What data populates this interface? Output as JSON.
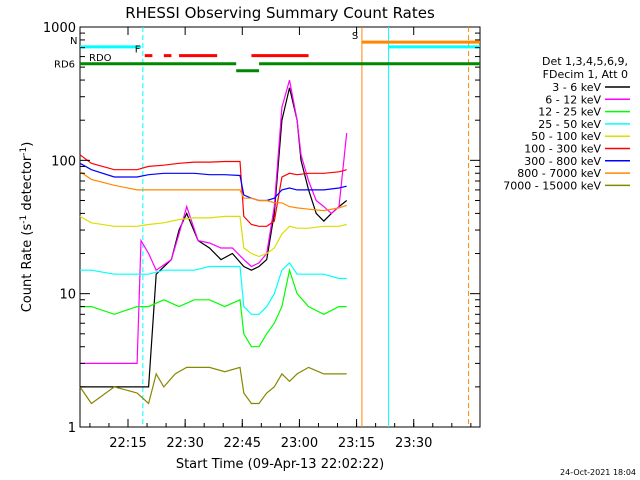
{
  "chart_data": {
    "type": "line",
    "title": "RHESSI Observing Summary Count Rates",
    "xlabel": "Start Time (09-Apr-13 22:02:22)",
    "ylabel": "Count Rate (s",
    "ylabel_sup": "-1",
    "ylabel_tail": " detector",
    "ylabel_sup2": "-1",
    "ylabel_end": ")",
    "footer": "24-Oct-2021 18:04",
    "x_unit": "minutes since 22:02:22",
    "xlim": [
      0,
      105
    ],
    "ylim": [
      1,
      1000
    ],
    "y_scale": "log",
    "grid": false,
    "legend_position": "right",
    "x_ticks": [
      {
        "x": 12.6,
        "label": "22:15"
      },
      {
        "x": 27.6,
        "label": "22:30"
      },
      {
        "x": 42.6,
        "label": "22:45"
      },
      {
        "x": 57.6,
        "label": "23:00"
      },
      {
        "x": 72.6,
        "label": "23:15"
      },
      {
        "x": 87.6,
        "label": "23:30"
      }
    ],
    "y_ticks": [
      {
        "y": 1,
        "label": "1"
      },
      {
        "y": 10,
        "label": "10"
      },
      {
        "y": 100,
        "label": "100"
      },
      {
        "y": 1000,
        "label": "1000"
      }
    ],
    "legend_header": [
      "Det 1,3,4,5,6,9,",
      "FDecim 1, Att 0"
    ],
    "series": [
      {
        "name": "3 - 6 keV",
        "color": "#000000",
        "x": [
          0,
          3,
          9,
          15,
          18,
          20,
          24,
          26,
          28,
          31,
          34,
          37,
          40,
          43,
          45,
          47,
          49,
          51,
          53,
          55,
          57,
          58,
          60,
          62,
          64,
          66,
          68,
          70
        ],
        "y": [
          2,
          2,
          2,
          2,
          2,
          14,
          18,
          30,
          40,
          25,
          22,
          18,
          20,
          16,
          15,
          16,
          18,
          40,
          200,
          350,
          200,
          100,
          60,
          40,
          35,
          40,
          45,
          50
        ]
      },
      {
        "name": "6 - 12 keV",
        "color": "#ff00ff",
        "x": [
          0,
          3,
          9,
          15,
          16,
          18,
          20,
          24,
          26,
          28,
          31,
          34,
          37,
          40,
          43,
          45,
          47,
          49,
          51,
          53,
          55,
          57,
          58,
          60,
          62,
          64,
          66,
          68,
          70
        ],
        "y": [
          3,
          3,
          3,
          3,
          25,
          20,
          15,
          18,
          28,
          45,
          25,
          24,
          22,
          22,
          18,
          16,
          17,
          20,
          45,
          250,
          400,
          200,
          110,
          70,
          50,
          45,
          40,
          45,
          160
        ]
      },
      {
        "name": "12 - 25 keV",
        "color": "#00ff00",
        "x": [
          0,
          3,
          9,
          15,
          18,
          22,
          26,
          30,
          34,
          38,
          42,
          43,
          45,
          47,
          49,
          51,
          53,
          55,
          57,
          60,
          64,
          68,
          70
        ],
        "y": [
          8,
          8,
          7,
          8,
          8,
          9,
          8,
          9,
          9,
          8,
          9,
          5,
          4,
          4,
          5,
          6,
          8,
          15,
          10,
          8,
          7,
          8,
          8
        ]
      },
      {
        "name": "25 - 50 keV",
        "color": "#00ffff",
        "x": [
          0,
          3,
          9,
          15,
          18,
          22,
          26,
          30,
          34,
          38,
          42,
          43,
          45,
          47,
          49,
          51,
          53,
          55,
          57,
          60,
          64,
          68,
          70
        ],
        "y": [
          15,
          15,
          14,
          14,
          14,
          15,
          15,
          15,
          16,
          16,
          16,
          8,
          7,
          7,
          8,
          10,
          15,
          17,
          14,
          14,
          14,
          13,
          13
        ]
      },
      {
        "name": "50 - 100 keV",
        "color": "#dddd00",
        "x": [
          0,
          3,
          9,
          15,
          18,
          22,
          26,
          30,
          34,
          38,
          42,
          43,
          45,
          47,
          49,
          51,
          53,
          55,
          57,
          60,
          64,
          68,
          70
        ],
        "y": [
          38,
          34,
          32,
          32,
          33,
          34,
          36,
          37,
          37,
          38,
          38,
          22,
          20,
          19,
          20,
          22,
          28,
          32,
          31,
          31,
          32,
          32,
          33
        ]
      },
      {
        "name": "100 - 300 keV",
        "color": "#ff0000",
        "x": [
          0,
          3,
          9,
          15,
          18,
          22,
          26,
          30,
          34,
          38,
          42,
          43,
          45,
          47,
          49,
          51,
          53,
          55,
          57,
          60,
          64,
          68,
          70
        ],
        "y": [
          110,
          95,
          85,
          85,
          90,
          92,
          95,
          97,
          97,
          98,
          98,
          38,
          33,
          32,
          32,
          35,
          75,
          80,
          78,
          80,
          80,
          82,
          85
        ]
      },
      {
        "name": "300 - 800 keV",
        "color": "#0000ff",
        "x": [
          0,
          3,
          9,
          15,
          18,
          22,
          26,
          30,
          34,
          38,
          42,
          43,
          45,
          47,
          49,
          51,
          53,
          55,
          57,
          60,
          64,
          68,
          70
        ],
        "y": [
          95,
          85,
          75,
          75,
          78,
          80,
          80,
          80,
          78,
          78,
          77,
          55,
          52,
          50,
          50,
          52,
          60,
          62,
          60,
          60,
          60,
          62,
          64
        ]
      },
      {
        "name": "800 - 7000 keV",
        "color": "#ff8800",
        "x": [
          0,
          3,
          9,
          15,
          18,
          22,
          26,
          30,
          34,
          38,
          42,
          43,
          45,
          47,
          49,
          51,
          53,
          55,
          57,
          60,
          64,
          68,
          70
        ],
        "y": [
          82,
          72,
          65,
          60,
          60,
          60,
          60,
          60,
          60,
          60,
          60,
          52,
          52,
          50,
          50,
          48,
          48,
          45,
          44,
          43,
          42,
          44,
          46
        ]
      },
      {
        "name": "7000 - 15000 keV",
        "color": "#888800",
        "x": [
          0,
          3,
          9,
          15,
          18,
          20,
          22,
          25,
          28,
          30,
          34,
          38,
          42,
          43,
          45,
          47,
          49,
          51,
          53,
          55,
          57,
          60,
          64,
          68,
          70
        ],
        "y": [
          2,
          1.5,
          2,
          1.8,
          1.5,
          2.5,
          2,
          2.5,
          2.8,
          2.8,
          2.8,
          2.6,
          2.8,
          1.8,
          1.5,
          1.5,
          1.8,
          2,
          2.5,
          2.2,
          2.5,
          2.8,
          2.5,
          2.5,
          2.5
        ]
      }
    ],
    "flag_bars": [
      {
        "label": "N",
        "label_color": "#00ffff",
        "color": "#00ffff",
        "y": 710,
        "segments": [
          [
            0,
            16
          ]
        ]
      },
      {
        "label": "",
        "label_color": "#00ffff",
        "color": "#00ffff",
        "y": 710,
        "segments": [
          [
            81,
            105
          ]
        ]
      },
      {
        "label": "F",
        "label_color": "#ff0000",
        "color": "#ff0000",
        "y": 610,
        "segments": [
          [
            17,
            19
          ],
          [
            22,
            24
          ],
          [
            26,
            36
          ],
          [
            45,
            60
          ]
        ]
      },
      {
        "label": "S",
        "label_color": "#ff8800",
        "color": "#ff8800",
        "y": 770,
        "segments": [
          [
            74,
            105
          ]
        ]
      },
      {
        "label": "RDO",
        "label_color": "#000000",
        "color": "#008800",
        "y": 530,
        "segments": [
          [
            0,
            41
          ],
          [
            47,
            105
          ]
        ]
      },
      {
        "label": "RD6",
        "label_color": "#008800",
        "color": "#008800",
        "y": 470,
        "segments": [
          [
            41,
            47
          ]
        ]
      }
    ],
    "vertical_markers": [
      {
        "x": 16.5,
        "color": "#00ffff",
        "style": "dashed"
      },
      {
        "x": 74,
        "color": "#ff8800",
        "style": "solid"
      },
      {
        "x": 81,
        "color": "#00ffff",
        "style": "solid"
      },
      {
        "x": 102,
        "color": "#ff8800",
        "style": "dashed"
      }
    ]
  }
}
